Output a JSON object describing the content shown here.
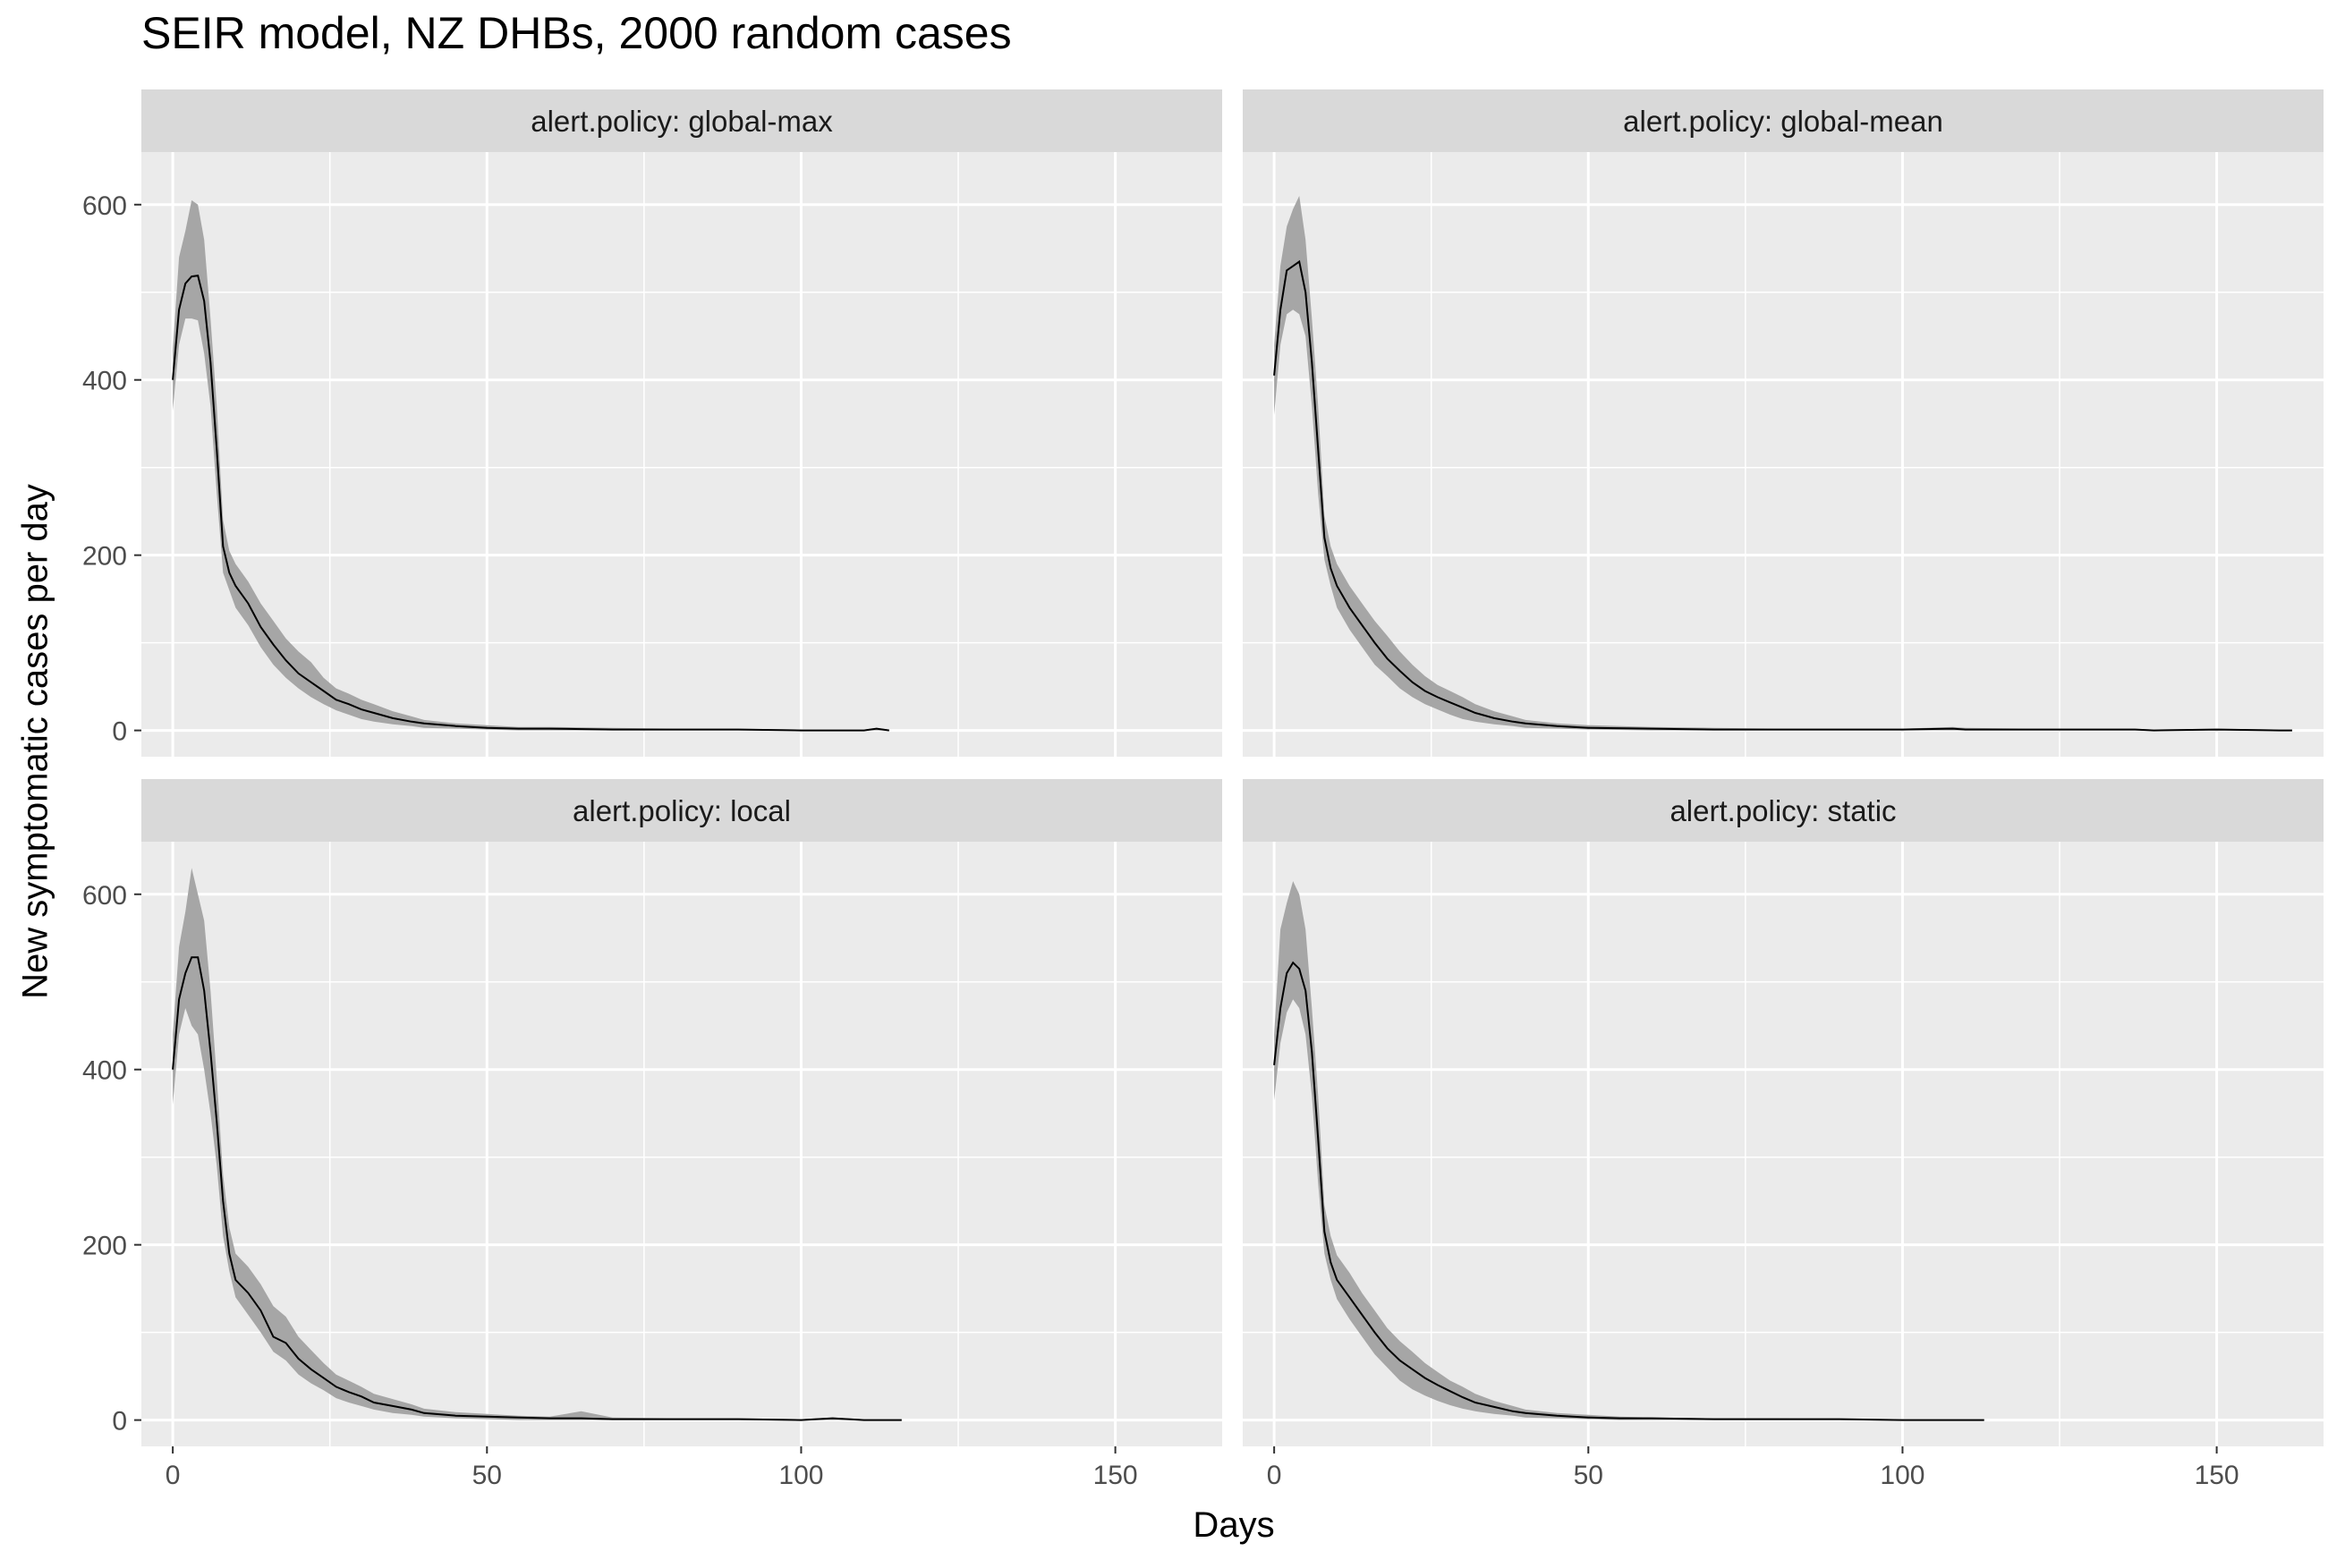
{
  "chart_data": {
    "type": "line",
    "title": "SEIR model, NZ DHBs, 2000 random cases",
    "xlabel": "Days",
    "ylabel": "New symptomatic cases per day",
    "xlim": [
      -5,
      167
    ],
    "ylim": [
      -30,
      660
    ],
    "x_ticks": [
      0,
      50,
      100,
      150
    ],
    "y_ticks": [
      0,
      200,
      400,
      600
    ],
    "x_minor": [
      25,
      75,
      125
    ],
    "y_minor": [
      100,
      300,
      500
    ],
    "grid": true,
    "ribbon": "grey interval band around the mean line",
    "series": [
      {
        "name": "alert.policy: global-max",
        "days": [
          0,
          1,
          2,
          3,
          4,
          5,
          6,
          7,
          8,
          9,
          10,
          12,
          14,
          16,
          18,
          20,
          22,
          24,
          26,
          28,
          30,
          32,
          35,
          38,
          40,
          45,
          50,
          55,
          60,
          70,
          80,
          90,
          100,
          105,
          110,
          112,
          114
        ],
        "mean": [
          400,
          480,
          510,
          518,
          519,
          490,
          420,
          320,
          210,
          180,
          165,
          145,
          118,
          98,
          80,
          65,
          55,
          45,
          35,
          30,
          24,
          20,
          14,
          10,
          8,
          5,
          3,
          2,
          2,
          1,
          1,
          1,
          0,
          0,
          0,
          2,
          0
        ],
        "lower": [
          365,
          440,
          470,
          470,
          468,
          430,
          370,
          270,
          180,
          160,
          140,
          120,
          95,
          75,
          60,
          48,
          38,
          30,
          23,
          18,
          13,
          10,
          7,
          5,
          3,
          2,
          1,
          0,
          0,
          0,
          0,
          0,
          0,
          0,
          0,
          0,
          0
        ],
        "upper": [
          435,
          540,
          570,
          605,
          600,
          560,
          470,
          370,
          240,
          205,
          190,
          170,
          145,
          125,
          105,
          90,
          78,
          60,
          48,
          42,
          35,
          30,
          22,
          16,
          12,
          8,
          6,
          4,
          4,
          3,
          2,
          2,
          1,
          1,
          1,
          3,
          1
        ]
      },
      {
        "name": "alert.policy: global-mean",
        "days": [
          0,
          1,
          2,
          3,
          4,
          5,
          6,
          7,
          8,
          9,
          10,
          12,
          14,
          16,
          18,
          20,
          22,
          24,
          26,
          28,
          30,
          32,
          35,
          38,
          40,
          45,
          50,
          60,
          70,
          80,
          90,
          100,
          108,
          110,
          120,
          130,
          137,
          140,
          150,
          160,
          162
        ],
        "mean": [
          405,
          480,
          525,
          530,
          535,
          500,
          420,
          320,
          220,
          185,
          165,
          140,
          120,
          100,
          82,
          68,
          55,
          45,
          38,
          32,
          26,
          20,
          14,
          10,
          8,
          5,
          3,
          2,
          1,
          1,
          1,
          1,
          2,
          1,
          1,
          1,
          1,
          0,
          1,
          0,
          0
        ],
        "lower": [
          360,
          440,
          475,
          480,
          475,
          450,
          370,
          270,
          195,
          165,
          140,
          115,
          95,
          75,
          62,
          48,
          38,
          30,
          24,
          18,
          13,
          10,
          7,
          5,
          3,
          2,
          1,
          0,
          0,
          0,
          0,
          0,
          0,
          0,
          0,
          0,
          0,
          0,
          0,
          0,
          0
        ],
        "upper": [
          440,
          530,
          575,
          595,
          610,
          560,
          470,
          370,
          245,
          210,
          190,
          165,
          145,
          125,
          108,
          90,
          75,
          62,
          52,
          45,
          38,
          30,
          22,
          16,
          12,
          8,
          6,
          4,
          3,
          2,
          2,
          2,
          4,
          3,
          2,
          2,
          2,
          1,
          2,
          1,
          1
        ]
      },
      {
        "name": "alert.policy: local",
        "days": [
          0,
          1,
          2,
          3,
          4,
          5,
          6,
          7,
          8,
          9,
          10,
          12,
          14,
          16,
          18,
          20,
          22,
          24,
          26,
          28,
          30,
          32,
          35,
          38,
          40,
          45,
          50,
          55,
          60,
          65,
          70,
          80,
          90,
          100,
          105,
          110,
          116
        ],
        "mean": [
          400,
          480,
          510,
          528,
          528,
          490,
          420,
          340,
          250,
          190,
          160,
          145,
          125,
          95,
          88,
          70,
          58,
          48,
          38,
          32,
          27,
          20,
          16,
          12,
          8,
          5,
          4,
          3,
          2,
          2,
          1,
          1,
          1,
          0,
          2,
          0,
          0
        ],
        "lower": [
          360,
          440,
          470,
          450,
          440,
          400,
          350,
          290,
          210,
          170,
          140,
          120,
          100,
          78,
          68,
          52,
          42,
          34,
          25,
          20,
          16,
          12,
          8,
          6,
          4,
          2,
          1,
          0,
          0,
          0,
          0,
          0,
          0,
          0,
          0,
          0,
          0
        ],
        "upper": [
          440,
          540,
          580,
          630,
          600,
          570,
          490,
          390,
          280,
          220,
          190,
          175,
          155,
          130,
          118,
          95,
          80,
          65,
          52,
          45,
          38,
          30,
          24,
          18,
          13,
          9,
          7,
          5,
          4,
          10,
          3,
          2,
          2,
          1,
          3,
          1,
          1
        ]
      },
      {
        "name": "alert.policy: static",
        "days": [
          0,
          1,
          2,
          3,
          4,
          5,
          6,
          7,
          8,
          9,
          10,
          12,
          14,
          16,
          18,
          20,
          22,
          24,
          26,
          28,
          30,
          32,
          35,
          38,
          40,
          45,
          50,
          55,
          60,
          70,
          80,
          90,
          100,
          110,
          113
        ],
        "mean": [
          405,
          470,
          510,
          522,
          515,
          490,
          420,
          320,
          215,
          180,
          160,
          140,
          120,
          100,
          82,
          68,
          58,
          48,
          40,
          33,
          26,
          20,
          15,
          10,
          8,
          5,
          3,
          2,
          2,
          1,
          1,
          1,
          0,
          0,
          0
        ],
        "lower": [
          365,
          430,
          465,
          480,
          470,
          440,
          370,
          270,
          190,
          160,
          138,
          115,
          95,
          75,
          60,
          45,
          35,
          28,
          22,
          17,
          13,
          10,
          7,
          5,
          3,
          2,
          1,
          0,
          0,
          0,
          0,
          0,
          0,
          0,
          0
        ],
        "upper": [
          440,
          560,
          590,
          615,
          600,
          560,
          470,
          370,
          245,
          210,
          188,
          168,
          145,
          125,
          105,
          90,
          78,
          65,
          55,
          45,
          38,
          30,
          22,
          16,
          12,
          8,
          6,
          4,
          3,
          2,
          2,
          1,
          1,
          1,
          1
        ]
      }
    ]
  },
  "colors": {
    "panel_bg": "#ebebeb",
    "strip_bg": "#d9d9d9",
    "grid": "#ffffff",
    "ribbon": "#a6a6a6",
    "line": "#000000",
    "tick_text": "#4d4d4d"
  }
}
